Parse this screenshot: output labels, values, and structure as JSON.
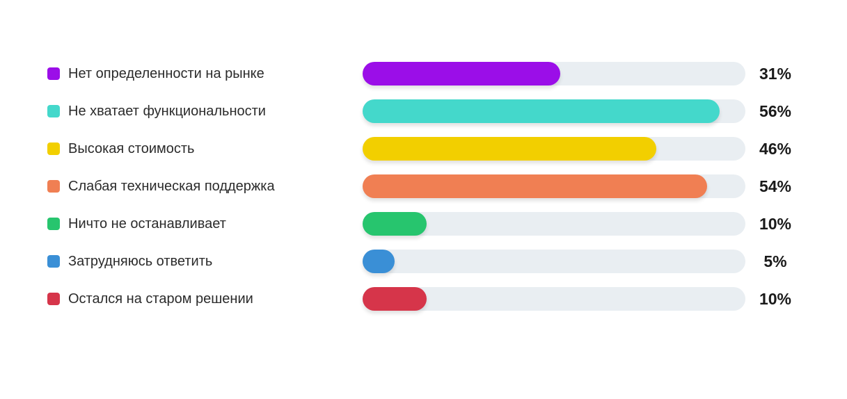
{
  "chart_data": {
    "type": "bar",
    "orientation": "horizontal",
    "xlim": [
      0,
      60
    ],
    "grid": false,
    "legend_placement": "left",
    "categories": [
      "Нет определенности на рынке",
      "Не хватает функциональности",
      "Высокая стоимость",
      "Слабая техническая поддержка",
      "Ничто не останавливает",
      "Затрудняюсь ответить",
      "Остался на старом решении"
    ],
    "values": [
      31,
      56,
      46,
      54,
      10,
      5,
      10
    ],
    "value_labels": [
      "31%",
      "56%",
      "46%",
      "54%",
      "10%",
      "5%",
      "10%"
    ],
    "colors": [
      "#9b0ee8",
      "#44d8cb",
      "#f2cf00",
      "#f07f53",
      "#27c56e",
      "#3a8fd6",
      "#d6354a"
    ]
  }
}
